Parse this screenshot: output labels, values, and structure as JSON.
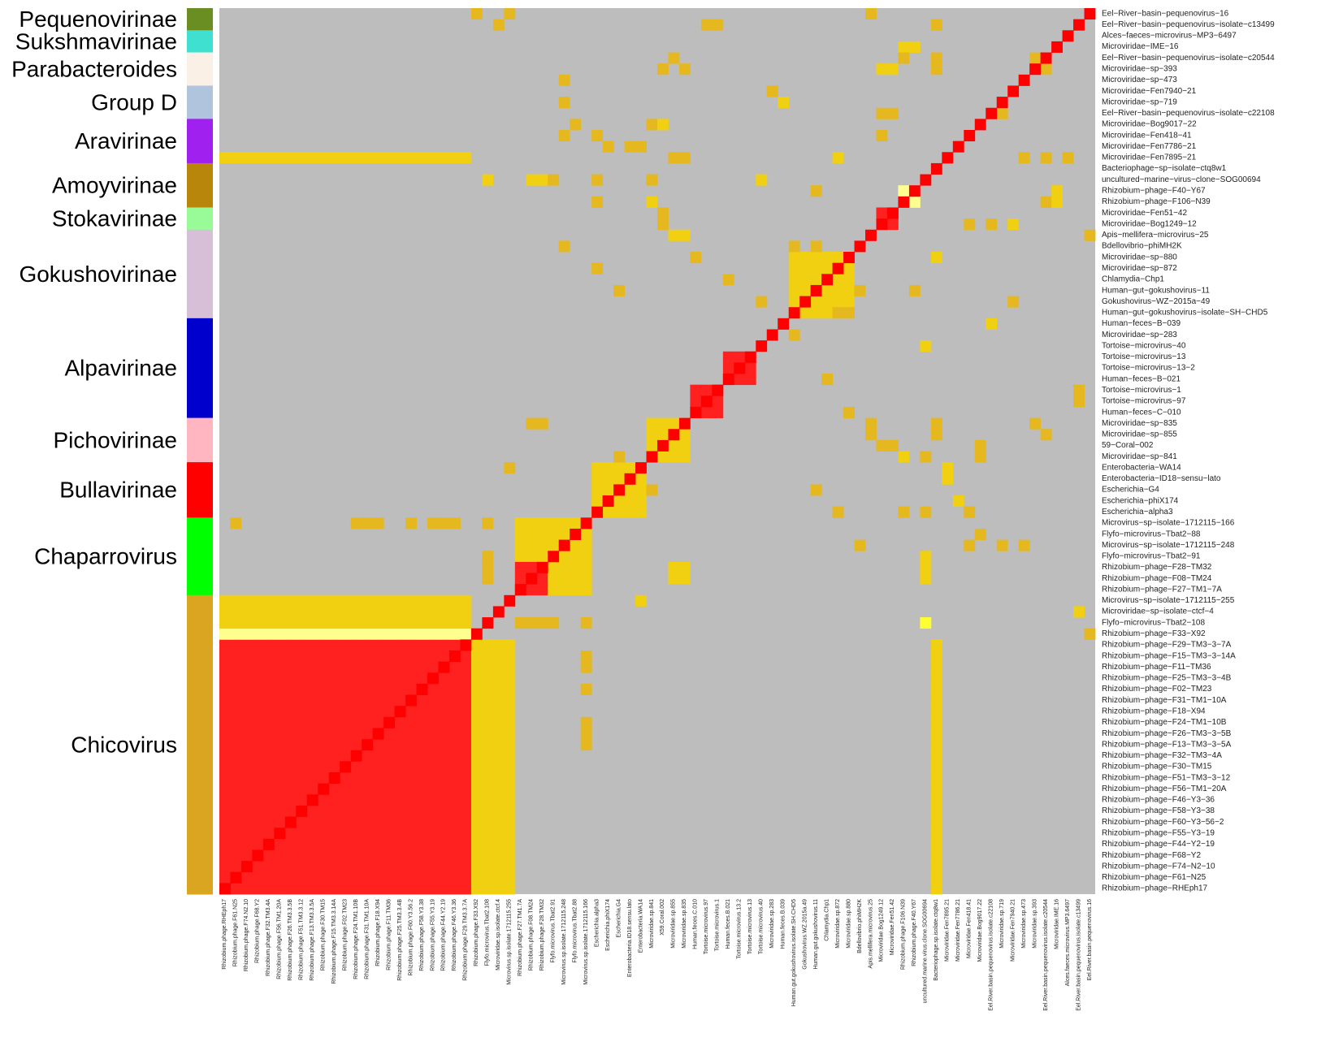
{
  "chart_data": {
    "type": "heatmap",
    "title": "",
    "xlabel": "",
    "ylabel": "",
    "legend": "none",
    "colors": {
      "background": "#bdbdbd",
      "gold": "#e5b81f",
      "yellow": "#f0d010",
      "bright_yellow": "#ffff30",
      "pale_yellow": "#ffff90",
      "pink": "#ff9090",
      "red": "#ff2020",
      "dark_red": "#ff0000"
    },
    "groups": [
      {
        "name": "Pequenovirinae",
        "color": "#6b8e23",
        "size": 2
      },
      {
        "name": "Sukshmavirinae",
        "color": "#40e0d0",
        "size": 2
      },
      {
        "name": "Parabacteroides",
        "color": "#faf0e6",
        "size": 3
      },
      {
        "name": "Group D",
        "color": "#b0c4de",
        "size": 3
      },
      {
        "name": "Aravirinae",
        "color": "#a020f0",
        "size": 4
      },
      {
        "name": "Amoyvirinae",
        "color": "#b8860b",
        "size": 4
      },
      {
        "name": "Stokavirinae",
        "color": "#98fb98",
        "size": 2
      },
      {
        "name": "Gokushovirinae",
        "color": "#d8bfd8",
        "size": 8
      },
      {
        "name": "Alpavirinae",
        "color": "#0000cd",
        "size": 9
      },
      {
        "name": "Pichovirinae",
        "color": "#ffb6c1",
        "size": 4
      },
      {
        "name": "Bullavirinae",
        "color": "#ff0000",
        "size": 5
      },
      {
        "name": "Chaparrovirus",
        "color": "#00ff00",
        "size": 7
      },
      {
        "name": "Chicovirus",
        "color": "#daa520",
        "size": 27
      }
    ],
    "rows": [
      "Eel−River−basin−pequenovirus−16",
      "Eel−River−basin−pequenovirus−isolate−c13499",
      "Alces−faeces−microvirus−MP3−6497",
      "Microviridae−IME−16",
      "Eel−River−basin−pequenovirus−isolate−c20544",
      "Microviridae−sp−393",
      "Microviridae−sp−473",
      "Microviridae−Fen7940−21",
      "Microviridae−sp−719",
      "Eel−River−basin−pequenovirus−isolate−c22108",
      "Microviridae−Bog9017−22",
      "Microviridae−Fen418−41",
      "Microviridae−Fen7786−21",
      "Microviridae−Fen7895−21",
      "Bacteriophage−sp−isolate−ctq8w1",
      "uncultured−marine−virus−clone−SOG00694",
      "Rhizobium−phage−F40−Y67",
      "Rhizobium−phage−F106−N39",
      "Microviridae−Fen51−42",
      "Microviridae−Bog1249−12",
      "Apis−mellifera−microvirus−25",
      "Bdellovibrio−phiMH2K",
      "Microviridae−sp−880",
      "Microviridae−sp−872",
      "Chlamydia−Chp1",
      "Human−gut−gokushovirus−11",
      "Gokushovirus−WZ−2015a−49",
      "Human−gut−gokushovirus−isolate−SH−CHD5",
      "Human−feces−B−039",
      "Microviridae−sp−283",
      "Tortoise−microvirus−40",
      "Tortoise−microvirus−13",
      "Tortoise−microvirus−13−2",
      "Human−feces−B−021",
      "Tortoise−microvirus−1",
      "Tortoise−microvirus−97",
      "Human−feces−C−010",
      "Microviridae−sp−835",
      "Microviridae−sp−855",
      "59−Coral−002",
      "Microviridae−sp−841",
      "Enterobacteria−WA14",
      "Enterobacteria−ID18−sensu−lato",
      "Escherichia−G4",
      "Escherichia−phiX174",
      "Escherichia−alpha3",
      "Microvirus−sp−isolate−1712115−166",
      "Flyfo−microvirus−Tbat2−88",
      "Microvirus−sp−isolate−1712115−248",
      "Flyfo−microvirus−Tbat2−91",
      "Rhizobium−phage−F28−TM32",
      "Rhizobium−phage−F08−TM24",
      "Rhizobium−phage−F27−TM1−7A",
      "Microvirus−sp−isolate−1712115−255",
      "Microviridae−sp−isolate−ctcf−4",
      "Flyfo−microvirus−Tbat2−108",
      "Rhizobium−phage−F33−X92",
      "Rhizobium−phage−F29−TM3−3−7A",
      "Rhizobium−phage−F15−TM3−3−14A",
      "Rhizobium−phage−F11−TM36",
      "Rhizobium−phage−F25−TM3−3−4B",
      "Rhizobium−phage−F02−TM23",
      "Rhizobium−phage−F31−TM1−10A",
      "Rhizobium−phage−F18−X94",
      "Rhizobium−phage−F24−TM1−10B",
      "Rhizobium−phage−F26−TM3−3−5B",
      "Rhizobium−phage−F13−TM3−3−5A",
      "Rhizobium−phage−F32−TM3−4A",
      "Rhizobium−phage−F30−TM15",
      "Rhizobium−phage−F51−TM3−3−12",
      "Rhizobium−phage−F56−TM1−20A",
      "Rhizobium−phage−F46−Y3−36",
      "Rhizobium−phage−F58−Y3−38",
      "Rhizobium−phage−F60−Y3−56−2",
      "Rhizobium−phage−F55−Y3−19",
      "Rhizobium−phage−F44−Y2−19",
      "Rhizobium−phage−F68−Y2",
      "Rhizobium−phage−F74−N2−10",
      "Rhizobium−phage−F61−N25",
      "Rhizobium−phage−RHEph17"
    ],
    "columns": [
      "Rhizobium.phage.RHEph17",
      "Rhizobium.phage.F61.N25",
      "Rhizobium.phage.F74.N2.10",
      "Rhizobium.phage.F68.Y2",
      "Rhizobium.phage.F32.TM3.4A",
      "Rhizobium.phage.F56.TM1.20A",
      "Rhizobium.phage.F26.TM3.3.5B",
      "Rhizobium.phage.F51.TM3.3.12",
      "Rhizobium.phage.F13.TM3.3.5A",
      "Rhizobium.phage.F30.TM15",
      "Rhizobium.phage.F15.TM3.3.14A",
      "Rhizobium.phage.F02.TM23",
      "Rhizobium.phage.F24.TM1.10B",
      "Rhizobium.phage.F31.TM1.10A",
      "Rhizobium.phage.F18.X94",
      "Rhizobium.phage.F11.TM36",
      "Rhizobium.phage.F25.TM3.3.4B",
      "Rhizobium.phage.F60.Y3.56.2",
      "Rhizobium.phage.F58.Y3.38",
      "Rhizobium.phage.F55.Y3.19",
      "Rhizobium.phage.F44.Y2.19",
      "Rhizobium.phage.F46.Y3.36",
      "Rhizobium.phage.F29.TM3.3.7A",
      "Rhizobium.phage.F33.X92",
      "Flyfo.microvirus.Tbat2.108",
      "Microviridae.sp.isolate.ctcf.4",
      "Microvirus.sp.isolate.1712115.255",
      "Rhizobium.phage.F27.TM1.7A",
      "Rhizobium.phage.F08.TM24",
      "Rhizobium.phage.F28.TM32",
      "Flyfo.microvirus.Tbat2.91",
      "Microvirus.sp.isolate.1712115.248",
      "Flyfo.microvirus.Tbat2.88",
      "Microvirus.sp.isolate.1712115.166",
      "Escherichia.alpha3",
      "Escherichia.phiX174",
      "Escherichia.G4",
      "Enterobacteria.ID18.sensu.lato",
      "Enterobacteria.WA14",
      "Microviridae.sp.841",
      "X59.Coral.002",
      "Microviridae.sp.855",
      "Microviridae.sp.835",
      "Human.feces.C.010",
      "Tortoise.microvirus.97",
      "Tortoise.microvirus.1",
      "Human.feces.B.021",
      "Tortoise.microvirus.13.2",
      "Tortoise.microvirus.13",
      "Tortoise.microvirus.40",
      "Microviridae.sp.283",
      "Human.feces.B.039",
      "Human.gut.gokushovirus.isolate.SH.CHD5",
      "Gokushovirus.WZ.2015a.49",
      "Human.gut.gokushovirus.11",
      "Chlamydia.Chp1",
      "Microviridae.sp.872",
      "Microviridae.sp.880",
      "Bdellovibrio.phiMH2K",
      "Apis.mellifera.microvirus.25",
      "Microviridae.Bog1249.12",
      "Microviridae.Fen51.42",
      "Rhizobium.phage.F106.N39",
      "Rhizobium.phage.F40.Y67",
      "uncultured.marine.virus.clone.SOG00694",
      "Bacteriophage.sp.isolate.ctq8w1",
      "Microviridae.Fen7895.21",
      "Microviridae.Fen7786.21",
      "Microviridae.Fen418.41",
      "Microviridae.Bog9017.22",
      "Eel.River.basin.pequenovirus.isolate.c22108",
      "Microviridae.sp.719",
      "Microviridae.Fen7940.21",
      "Microviridae.sp.473",
      "Microviridae.sp.393",
      "Eel.River.basin.pequenovirus.isolate.c20544",
      "Microviridae.IME.16",
      "Alces.faeces.microvirus.MP3.6497",
      "Eel.River.basin.pequenovirus.isolate.c13499",
      "Eel.River.basin.pequenovirus.16"
    ],
    "blocks": [
      {
        "row0": 57,
        "row1": 79,
        "col0": 0,
        "col1": 22,
        "level": "red"
      },
      {
        "row0": 56,
        "row1": 56,
        "col0": 0,
        "col1": 22,
        "level": "pale_yellow"
      },
      {
        "row0": 53,
        "row1": 55,
        "col0": 0,
        "col1": 22,
        "level": "yellow"
      },
      {
        "row0": 57,
        "row1": 79,
        "col0": 23,
        "col1": 26,
        "level": "yellow"
      },
      {
        "row0": 13,
        "row1": 13,
        "col0": 0,
        "col1": 22,
        "level": "yellow"
      },
      {
        "row0": 46,
        "row1": 49,
        "col0": 27,
        "col1": 33,
        "level": "yellow"
      },
      {
        "row0": 50,
        "row1": 52,
        "col0": 27,
        "col1": 29,
        "level": "red"
      },
      {
        "row0": 50,
        "row1": 52,
        "col0": 30,
        "col1": 33,
        "level": "yellow"
      },
      {
        "row0": 41,
        "row1": 45,
        "col0": 34,
        "col1": 38,
        "level": "yellow"
      },
      {
        "row0": 37,
        "row1": 40,
        "col0": 39,
        "col1": 42,
        "level": "yellow"
      },
      {
        "row0": 34,
        "row1": 36,
        "col0": 43,
        "col1": 45,
        "level": "red"
      },
      {
        "row0": 31,
        "row1": 33,
        "col0": 46,
        "col1": 48,
        "level": "red"
      },
      {
        "row0": 22,
        "row1": 27,
        "col0": 52,
        "col1": 57,
        "level": "yellow"
      },
      {
        "row0": 18,
        "row1": 19,
        "col0": 60,
        "col1": 61,
        "level": "red"
      },
      {
        "row0": 46,
        "row1": 46,
        "col0": 12,
        "col1": 14,
        "level": "gold"
      },
      {
        "row0": 46,
        "row1": 46,
        "col0": 19,
        "col1": 21,
        "level": "gold"
      },
      {
        "row0": 50,
        "row1": 51,
        "col0": 41,
        "col1": 42,
        "level": "yellow"
      },
      {
        "row0": 55,
        "row1": 55,
        "col0": 27,
        "col1": 30,
        "level": "gold"
      },
      {
        "row0": 57,
        "row1": 79,
        "col0": 65,
        "col1": 65,
        "level": "yellow"
      }
    ],
    "diagonal_level": "dark_red",
    "scatter_cells": [
      [
        0,
        23,
        "gold"
      ],
      [
        0,
        26,
        "gold"
      ],
      [
        0,
        59,
        "gold"
      ],
      [
        1,
        25,
        "gold"
      ],
      [
        1,
        44,
        "gold"
      ],
      [
        1,
        45,
        "gold"
      ],
      [
        1,
        65,
        "gold"
      ],
      [
        3,
        62,
        "yellow"
      ],
      [
        3,
        63,
        "yellow"
      ],
      [
        4,
        41,
        "gold"
      ],
      [
        4,
        62,
        "gold"
      ],
      [
        4,
        65,
        "gold"
      ],
      [
        4,
        74,
        "gold"
      ],
      [
        5,
        40,
        "gold"
      ],
      [
        5,
        42,
        "gold"
      ],
      [
        5,
        60,
        "yellow"
      ],
      [
        5,
        61,
        "yellow"
      ],
      [
        5,
        65,
        "gold"
      ],
      [
        5,
        75,
        "gold"
      ],
      [
        6,
        31,
        "gold"
      ],
      [
        7,
        50,
        "gold"
      ],
      [
        8,
        31,
        "gold"
      ],
      [
        8,
        51,
        "yellow"
      ],
      [
        9,
        60,
        "gold"
      ],
      [
        9,
        61,
        "gold"
      ],
      [
        9,
        71,
        "gold"
      ],
      [
        10,
        32,
        "gold"
      ],
      [
        10,
        39,
        "gold"
      ],
      [
        10,
        40,
        "yellow"
      ],
      [
        11,
        31,
        "gold"
      ],
      [
        11,
        34,
        "gold"
      ],
      [
        11,
        60,
        "gold"
      ],
      [
        12,
        35,
        "gold"
      ],
      [
        12,
        37,
        "gold"
      ],
      [
        12,
        38,
        "gold"
      ],
      [
        13,
        41,
        "gold"
      ],
      [
        13,
        42,
        "gold"
      ],
      [
        13,
        56,
        "yellow"
      ],
      [
        13,
        66,
        "gold"
      ],
      [
        13,
        73,
        "gold"
      ],
      [
        13,
        75,
        "gold"
      ],
      [
        13,
        77,
        "gold"
      ],
      [
        15,
        24,
        "yellow"
      ],
      [
        15,
        28,
        "yellow"
      ],
      [
        15,
        29,
        "yellow"
      ],
      [
        15,
        30,
        "gold"
      ],
      [
        15,
        34,
        "gold"
      ],
      [
        15,
        39,
        "gold"
      ],
      [
        15,
        49,
        "yellow"
      ],
      [
        16,
        54,
        "gold"
      ],
      [
        16,
        62,
        "pale_yellow"
      ],
      [
        16,
        76,
        "yellow"
      ],
      [
        17,
        34,
        "gold"
      ],
      [
        17,
        39,
        "yellow"
      ],
      [
        17,
        63,
        "pale_yellow"
      ],
      [
        17,
        75,
        "gold"
      ],
      [
        17,
        76,
        "yellow"
      ],
      [
        18,
        40,
        "gold"
      ],
      [
        19,
        40,
        "gold"
      ],
      [
        19,
        68,
        "gold"
      ],
      [
        19,
        70,
        "gold"
      ],
      [
        19,
        72,
        "yellow"
      ],
      [
        20,
        41,
        "yellow"
      ],
      [
        20,
        42,
        "yellow"
      ],
      [
        20,
        79,
        "gold"
      ],
      [
        21,
        31,
        "gold"
      ],
      [
        21,
        52,
        "gold"
      ],
      [
        21,
        54,
        "gold"
      ],
      [
        22,
        43,
        "gold"
      ],
      [
        22,
        65,
        "yellow"
      ],
      [
        23,
        34,
        "gold"
      ],
      [
        24,
        46,
        "gold"
      ],
      [
        25,
        36,
        "gold"
      ],
      [
        25,
        58,
        "gold"
      ],
      [
        25,
        63,
        "gold"
      ],
      [
        26,
        49,
        "gold"
      ],
      [
        26,
        72,
        "gold"
      ],
      [
        27,
        56,
        "gold"
      ],
      [
        27,
        57,
        "gold"
      ],
      [
        28,
        70,
        "yellow"
      ],
      [
        29,
        52,
        "gold"
      ],
      [
        30,
        64,
        "yellow"
      ],
      [
        33,
        55,
        "gold"
      ],
      [
        34,
        78,
        "gold"
      ],
      [
        35,
        78,
        "gold"
      ],
      [
        36,
        57,
        "gold"
      ],
      [
        37,
        28,
        "gold"
      ],
      [
        37,
        29,
        "gold"
      ],
      [
        37,
        59,
        "gold"
      ],
      [
        37,
        65,
        "gold"
      ],
      [
        37,
        74,
        "gold"
      ],
      [
        38,
        59,
        "gold"
      ],
      [
        38,
        65,
        "gold"
      ],
      [
        38,
        75,
        "gold"
      ],
      [
        39,
        60,
        "gold"
      ],
      [
        39,
        61,
        "gold"
      ],
      [
        39,
        69,
        "gold"
      ],
      [
        40,
        36,
        "gold"
      ],
      [
        40,
        62,
        "yellow"
      ],
      [
        40,
        64,
        "gold"
      ],
      [
        40,
        69,
        "gold"
      ],
      [
        41,
        26,
        "gold"
      ],
      [
        41,
        66,
        "yellow"
      ],
      [
        42,
        66,
        "yellow"
      ],
      [
        43,
        39,
        "gold"
      ],
      [
        43,
        54,
        "gold"
      ],
      [
        44,
        67,
        "yellow"
      ],
      [
        45,
        56,
        "gold"
      ],
      [
        45,
        62,
        "gold"
      ],
      [
        45,
        64,
        "gold"
      ],
      [
        45,
        68,
        "gold"
      ],
      [
        46,
        1,
        "gold"
      ],
      [
        46,
        17,
        "gold"
      ],
      [
        46,
        24,
        "gold"
      ],
      [
        47,
        69,
        "gold"
      ],
      [
        48,
        58,
        "gold"
      ],
      [
        48,
        68,
        "gold"
      ],
      [
        48,
        71,
        "gold"
      ],
      [
        48,
        73,
        "gold"
      ],
      [
        49,
        24,
        "gold"
      ],
      [
        49,
        64,
        "yellow"
      ],
      [
        50,
        24,
        "gold"
      ],
      [
        51,
        24,
        "gold"
      ],
      [
        50,
        64,
        "yellow"
      ],
      [
        51,
        64,
        "yellow"
      ],
      [
        53,
        38,
        "yellow"
      ],
      [
        54,
        78,
        "yellow"
      ],
      [
        55,
        33,
        "gold"
      ],
      [
        55,
        64,
        "bright_yellow"
      ],
      [
        56,
        79,
        "gold"
      ],
      [
        58,
        33,
        "gold"
      ],
      [
        59,
        33,
        "gold"
      ],
      [
        61,
        33,
        "gold"
      ],
      [
        64,
        33,
        "gold"
      ],
      [
        65,
        33,
        "gold"
      ],
      [
        66,
        33,
        "gold"
      ]
    ]
  }
}
